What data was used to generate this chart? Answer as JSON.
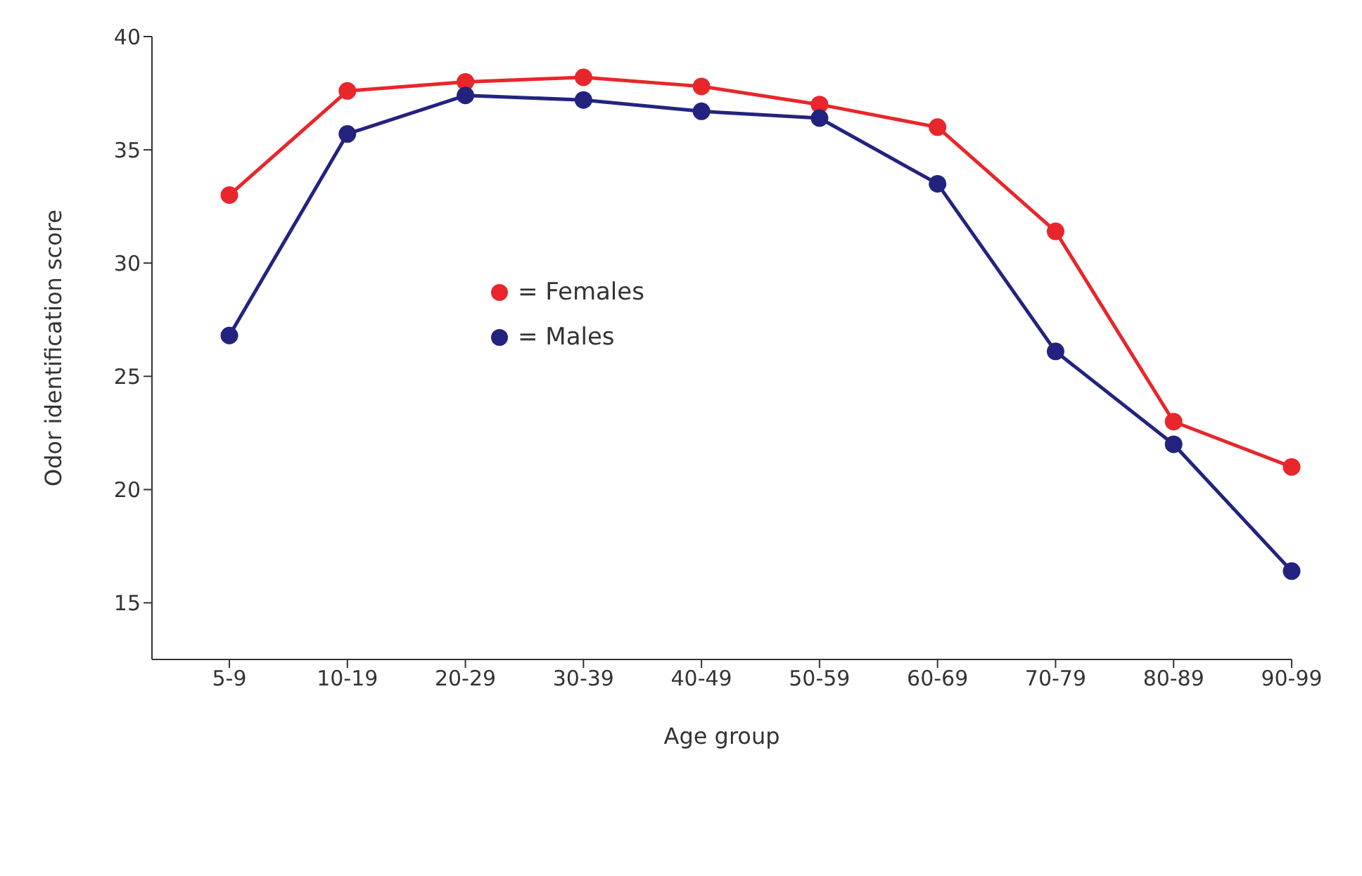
{
  "chart_data": {
    "type": "line",
    "xlabel": "Age group",
    "ylabel": "Odor identification score",
    "categories": [
      "5-9",
      "10-19",
      "20-29",
      "30-39",
      "40-49",
      "50-59",
      "60-69",
      "70-79",
      "80-89",
      "90-99"
    ],
    "series": [
      {
        "name": "= Females",
        "color": "#e8262b",
        "values": [
          33.0,
          37.6,
          38.0,
          38.2,
          37.8,
          37.0,
          36.0,
          31.4,
          23.0,
          21.0
        ]
      },
      {
        "name": "= Males",
        "color": "#23237f",
        "values": [
          26.8,
          35.7,
          37.4,
          37.2,
          36.7,
          36.4,
          33.5,
          26.1,
          22.0,
          16.4
        ]
      }
    ],
    "ylim": [
      12.5,
      40
    ],
    "yticks": [
      15,
      20,
      25,
      30,
      35,
      40
    ],
    "grid": false,
    "legend": "center",
    "marker": "circle",
    "line_style": "solid"
  }
}
